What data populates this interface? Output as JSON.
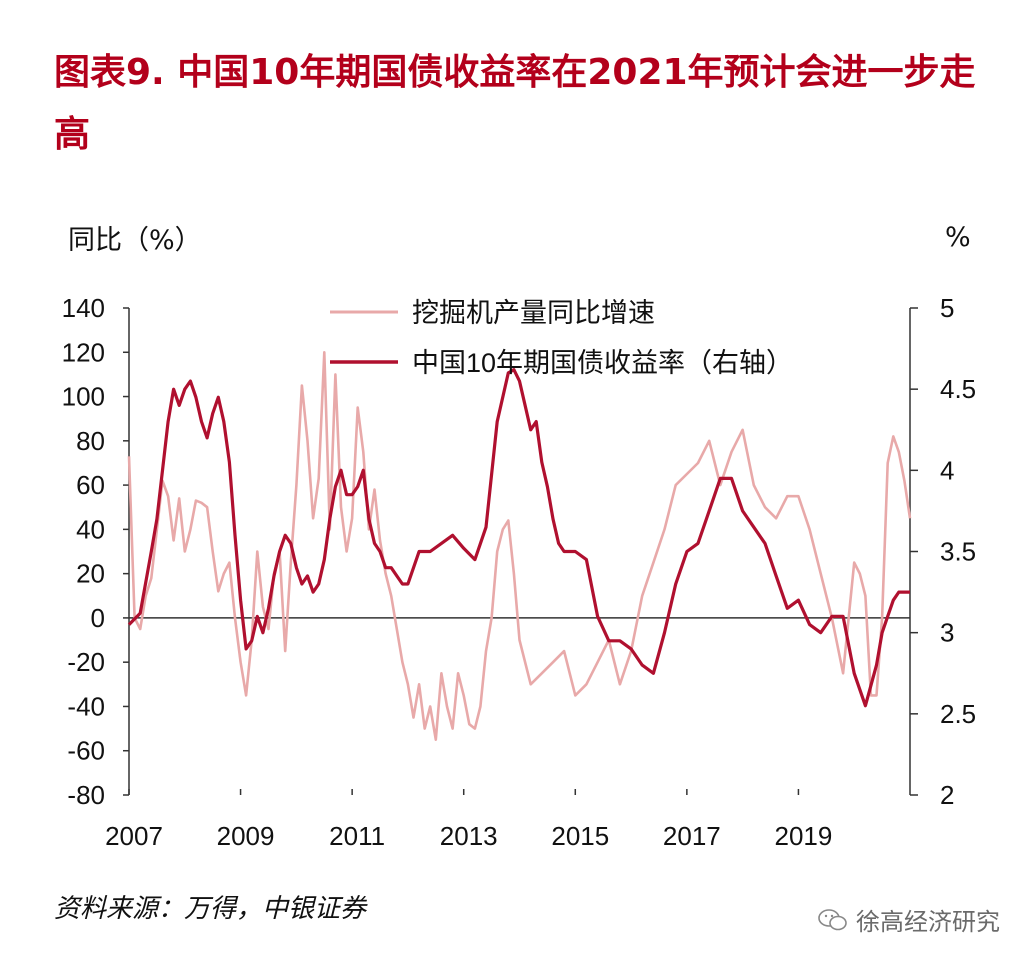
{
  "title": "图表9. 中国10年期国债收益率在2021年预计会进一步走高",
  "source": "资料来源：万得，中银证券",
  "watermark": "徐高经济研究",
  "chart_data": {
    "type": "line",
    "left_axis_label": "同比（%）",
    "right_axis_label": "%",
    "left_ylim": [
      -80,
      140
    ],
    "left_yticks": [
      140,
      120,
      100,
      80,
      60,
      40,
      20,
      0,
      -20,
      -40,
      -60,
      -80
    ],
    "right_ylim": [
      2,
      5
    ],
    "right_yticks": [
      "5",
      "4.5",
      "4",
      "3.5",
      "3",
      "2.5",
      "2"
    ],
    "x_ticks": [
      "2007",
      "2009",
      "2011",
      "2013",
      "2015",
      "2017",
      "2019"
    ],
    "xlim": [
      2007.0,
      2021.0
    ],
    "legend_placement": "top-center",
    "series": [
      {
        "name": "挖掘机产量同比增速",
        "axis": "left",
        "color": "#e8a9a9",
        "x": [
          2007.0,
          2007.1,
          2007.2,
          2007.3,
          2007.4,
          2007.5,
          2007.6,
          2007.7,
          2007.8,
          2007.9,
          2008.0,
          2008.1,
          2008.2,
          2008.3,
          2008.4,
          2008.5,
          2008.6,
          2008.7,
          2008.8,
          2008.9,
          2009.0,
          2009.1,
          2009.2,
          2009.3,
          2009.4,
          2009.5,
          2009.6,
          2009.7,
          2009.8,
          2009.9,
          2010.0,
          2010.1,
          2010.2,
          2010.3,
          2010.4,
          2010.5,
          2010.6,
          2010.7,
          2010.8,
          2010.9,
          2011.0,
          2011.1,
          2011.2,
          2011.3,
          2011.4,
          2011.5,
          2011.6,
          2011.7,
          2011.8,
          2011.9,
          2012.0,
          2012.1,
          2012.2,
          2012.3,
          2012.4,
          2012.5,
          2012.6,
          2012.7,
          2012.8,
          2012.9,
          2013.0,
          2013.1,
          2013.2,
          2013.3,
          2013.4,
          2013.5,
          2013.6,
          2013.7,
          2013.8,
          2013.9,
          2014.0,
          2014.2,
          2014.4,
          2014.6,
          2014.8,
          2015.0,
          2015.2,
          2015.4,
          2015.6,
          2015.8,
          2016.0,
          2016.2,
          2016.4,
          2016.6,
          2016.8,
          2017.0,
          2017.2,
          2017.4,
          2017.6,
          2017.8,
          2018.0,
          2018.2,
          2018.4,
          2018.6,
          2018.8,
          2019.0,
          2019.2,
          2019.4,
          2019.6,
          2019.8,
          2020.0,
          2020.1,
          2020.2,
          2020.3,
          2020.4,
          2020.5,
          2020.6,
          2020.7,
          2020.8,
          2020.9,
          2021.0
        ],
        "values": [
          73,
          0,
          -5,
          10,
          18,
          40,
          62,
          55,
          35,
          54,
          30,
          40,
          53,
          52,
          50,
          30,
          12,
          20,
          25,
          0,
          -20,
          -35,
          -10,
          30,
          5,
          -5,
          20,
          30,
          -15,
          25,
          60,
          105,
          80,
          45,
          63,
          120,
          40,
          110,
          50,
          30,
          45,
          95,
          75,
          40,
          58,
          35,
          20,
          10,
          -5,
          -20,
          -30,
          -45,
          -30,
          -50,
          -40,
          -55,
          -25,
          -40,
          -50,
          -25,
          -35,
          -48,
          -50,
          -40,
          -15,
          0,
          30,
          40,
          44,
          20,
          -10,
          -30,
          -25,
          -20,
          -15,
          -35,
          -30,
          -20,
          -10,
          -30,
          -15,
          10,
          25,
          40,
          60,
          65,
          70,
          80,
          60,
          75,
          85,
          60,
          50,
          45,
          55,
          55,
          40,
          20,
          0,
          -25,
          25,
          20,
          10,
          -35,
          -35,
          0,
          70,
          82,
          75,
          62,
          45
        ]
      },
      {
        "name": "中国10年期国债收益率（右轴）",
        "axis": "right",
        "color": "#b0102f",
        "x": [
          2007.0,
          2007.2,
          2007.4,
          2007.5,
          2007.6,
          2007.7,
          2007.8,
          2007.9,
          2008.0,
          2008.1,
          2008.2,
          2008.3,
          2008.4,
          2008.5,
          2008.6,
          2008.7,
          2008.8,
          2008.9,
          2009.0,
          2009.1,
          2009.2,
          2009.3,
          2009.4,
          2009.5,
          2009.6,
          2009.7,
          2009.8,
          2009.9,
          2010.0,
          2010.1,
          2010.2,
          2010.3,
          2010.4,
          2010.5,
          2010.6,
          2010.7,
          2010.8,
          2010.9,
          2011.0,
          2011.1,
          2011.2,
          2011.3,
          2011.4,
          2011.5,
          2011.6,
          2011.7,
          2011.8,
          2011.9,
          2012.0,
          2012.2,
          2012.4,
          2012.6,
          2012.8,
          2013.0,
          2013.2,
          2013.4,
          2013.6,
          2013.8,
          2013.9,
          2014.0,
          2014.1,
          2014.2,
          2014.3,
          2014.4,
          2014.5,
          2014.6,
          2014.7,
          2014.8,
          2014.9,
          2015.0,
          2015.2,
          2015.4,
          2015.6,
          2015.8,
          2016.0,
          2016.2,
          2016.4,
          2016.6,
          2016.8,
          2017.0,
          2017.2,
          2017.4,
          2017.6,
          2017.8,
          2018.0,
          2018.2,
          2018.4,
          2018.6,
          2018.8,
          2019.0,
          2019.2,
          2019.4,
          2019.6,
          2019.8,
          2020.0,
          2020.2,
          2020.4,
          2020.5,
          2020.6,
          2020.7,
          2020.8,
          2020.9,
          2021.0
        ],
        "values": [
          3.05,
          3.12,
          3.5,
          3.7,
          4.0,
          4.3,
          4.5,
          4.4,
          4.5,
          4.55,
          4.45,
          4.3,
          4.2,
          4.35,
          4.45,
          4.3,
          4.05,
          3.6,
          3.2,
          2.9,
          2.95,
          3.1,
          3.0,
          3.15,
          3.35,
          3.5,
          3.6,
          3.55,
          3.4,
          3.3,
          3.35,
          3.25,
          3.3,
          3.45,
          3.7,
          3.9,
          4.0,
          3.85,
          3.85,
          3.9,
          4.0,
          3.7,
          3.55,
          3.5,
          3.4,
          3.4,
          3.35,
          3.3,
          3.3,
          3.5,
          3.5,
          3.55,
          3.6,
          3.52,
          3.45,
          3.65,
          4.3,
          4.6,
          4.62,
          4.55,
          4.4,
          4.25,
          4.3,
          4.05,
          3.9,
          3.7,
          3.55,
          3.5,
          3.5,
          3.5,
          3.45,
          3.1,
          2.95,
          2.95,
          2.9,
          2.8,
          2.75,
          3.0,
          3.3,
          3.5,
          3.55,
          3.75,
          3.95,
          3.95,
          3.75,
          3.65,
          3.55,
          3.35,
          3.15,
          3.2,
          3.05,
          3.0,
          3.1,
          3.1,
          2.75,
          2.55,
          2.8,
          3.0,
          3.1,
          3.2,
          3.25,
          3.25,
          3.25
        ]
      }
    ]
  }
}
